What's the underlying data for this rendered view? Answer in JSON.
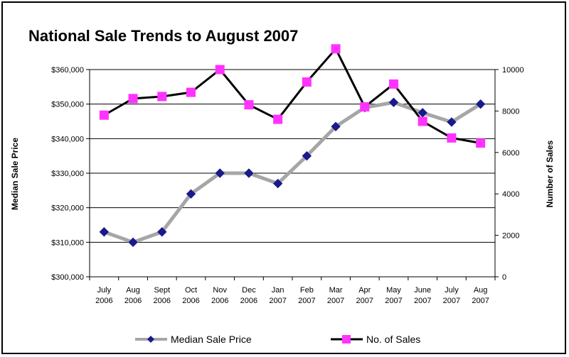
{
  "chart_data": {
    "type": "line",
    "title": "National Sale Trends to August 2007",
    "categories": [
      [
        "July",
        "2006"
      ],
      [
        "Aug",
        "2006"
      ],
      [
        "Sept",
        "2006"
      ],
      [
        "Oct",
        "2006"
      ],
      [
        "Nov",
        "2006"
      ],
      [
        "Dec",
        "2006"
      ],
      [
        "Jan",
        "2007"
      ],
      [
        "Feb",
        "2007"
      ],
      [
        "Mar",
        "2007"
      ],
      [
        "Apr",
        "2007"
      ],
      [
        "May",
        "2007"
      ],
      [
        "June",
        "2007"
      ],
      [
        "July",
        "2007"
      ],
      [
        "Aug",
        "2007"
      ]
    ],
    "y_left": {
      "label": "Median Sale Price",
      "min": 300000,
      "max": 360000,
      "step": 10000,
      "tick_labels": [
        "$300,000",
        "$310,000",
        "$320,000",
        "$330,000",
        "$340,000",
        "$350,000",
        "$360,000"
      ]
    },
    "y_right": {
      "label": "Number of Sales",
      "min": 0,
      "max": 10000,
      "step": 2000,
      "tick_labels": [
        "0",
        "2000",
        "4000",
        "6000",
        "8000",
        "10000"
      ]
    },
    "grid": true,
    "legend_position": "bottom",
    "series": [
      {
        "name": "Median Sale Price",
        "axis": "left",
        "line_color": "#a6a6a6",
        "marker": "diamond",
        "marker_color": "#1a1a8c",
        "values": [
          313000,
          310000,
          313000,
          324000,
          330000,
          330000,
          327000,
          335000,
          343500,
          349000,
          350500,
          347500,
          344800,
          350000
        ]
      },
      {
        "name": "No. of Sales",
        "axis": "right",
        "line_color": "#000000",
        "marker": "square",
        "marker_color": "#ff33ff",
        "values": [
          7800,
          8600,
          8700,
          8900,
          10000,
          8300,
          7600,
          9400,
          11000,
          8200,
          9300,
          7500,
          6700,
          6450
        ]
      }
    ]
  }
}
